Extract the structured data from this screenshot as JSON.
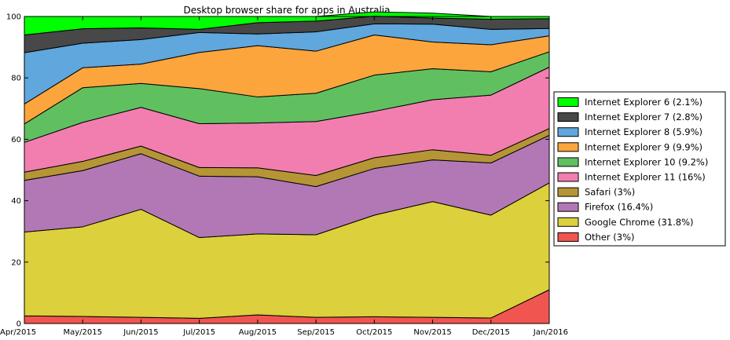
{
  "chart_data": {
    "type": "area",
    "stacked": true,
    "title": "Desktop browser share for apps in Australia",
    "xlabel": "",
    "ylabel": "",
    "ylim": [
      0,
      100
    ],
    "yticks": [
      0,
      20,
      40,
      60,
      80,
      100
    ],
    "categories": [
      "Apr/2015",
      "May/2015",
      "Jun/2015",
      "Jul/2015",
      "Aug/2015",
      "Sep/2015",
      "Oct/2015",
      "Nov/2015",
      "Dec/2015",
      "Jan/2016"
    ],
    "grid": false,
    "legend_position": "right",
    "series": [
      {
        "name": "Other",
        "legend": "Other (3%)",
        "color": "#f0554f",
        "values": [
          2.5,
          2.3,
          2.0,
          1.7,
          2.8,
          2.0,
          2.2,
          2.0,
          1.8,
          11.0
        ]
      },
      {
        "name": "Google Chrome",
        "legend": "Google Chrome (31.8%)",
        "color": "#dcd03c",
        "values": [
          27.3,
          29.2,
          35.2,
          26.3,
          26.4,
          26.9,
          33.1,
          37.7,
          33.5,
          34.8
        ]
      },
      {
        "name": "Firefox",
        "legend": "Firefox (16.4%)",
        "color": "#b278b5",
        "values": [
          16.8,
          18.3,
          18.1,
          20.0,
          18.6,
          15.7,
          15.2,
          13.6,
          17.0,
          15.5
        ]
      },
      {
        "name": "Safari",
        "legend": "Safari (3%)",
        "color": "#b69536",
        "values": [
          2.7,
          3.0,
          2.5,
          2.8,
          2.9,
          3.6,
          3.5,
          3.3,
          2.5,
          2.2
        ]
      },
      {
        "name": "Internet Explorer 11",
        "legend": "Internet Explorer 11 (16%)",
        "color": "#f27eb0",
        "values": [
          9.7,
          12.7,
          12.6,
          14.3,
          14.6,
          17.6,
          15.1,
          16.3,
          19.6,
          20.0
        ]
      },
      {
        "name": "Internet Explorer 10",
        "legend": "Internet Explorer 10 (9.2%)",
        "color": "#60c060",
        "values": [
          6.0,
          11.3,
          7.8,
          11.4,
          8.5,
          9.2,
          11.8,
          10.1,
          7.6,
          5.0
        ]
      },
      {
        "name": "Internet Explorer 9",
        "legend": "Internet Explorer 9 (9.9%)",
        "color": "#fca53d",
        "values": [
          6.5,
          6.5,
          6.3,
          11.8,
          16.7,
          13.7,
          13.1,
          8.7,
          8.8,
          5.2
        ]
      },
      {
        "name": "Internet Explorer 8",
        "legend": "Internet Explorer 8 (5.9%)",
        "color": "#5fa7dd",
        "values": [
          16.7,
          8.0,
          8.0,
          6.5,
          3.8,
          6.3,
          3.6,
          5.8,
          5.0,
          2.4
        ]
      },
      {
        "name": "Internet Explorer 7",
        "legend": "Internet Explorer 7 (2.8%)",
        "color": "#484848",
        "values": [
          5.8,
          4.7,
          3.8,
          1.0,
          3.7,
          3.5,
          2.5,
          2.0,
          3.3,
          3.2
        ]
      },
      {
        "name": "Internet Explorer 6",
        "legend": "Internet Explorer 6 (2.1%)",
        "color": "#00ff00",
        "values": [
          6.0,
          4.0,
          3.7,
          4.2,
          2.0,
          1.5,
          1.4,
          1.6,
          0.9,
          0.7
        ]
      }
    ]
  }
}
